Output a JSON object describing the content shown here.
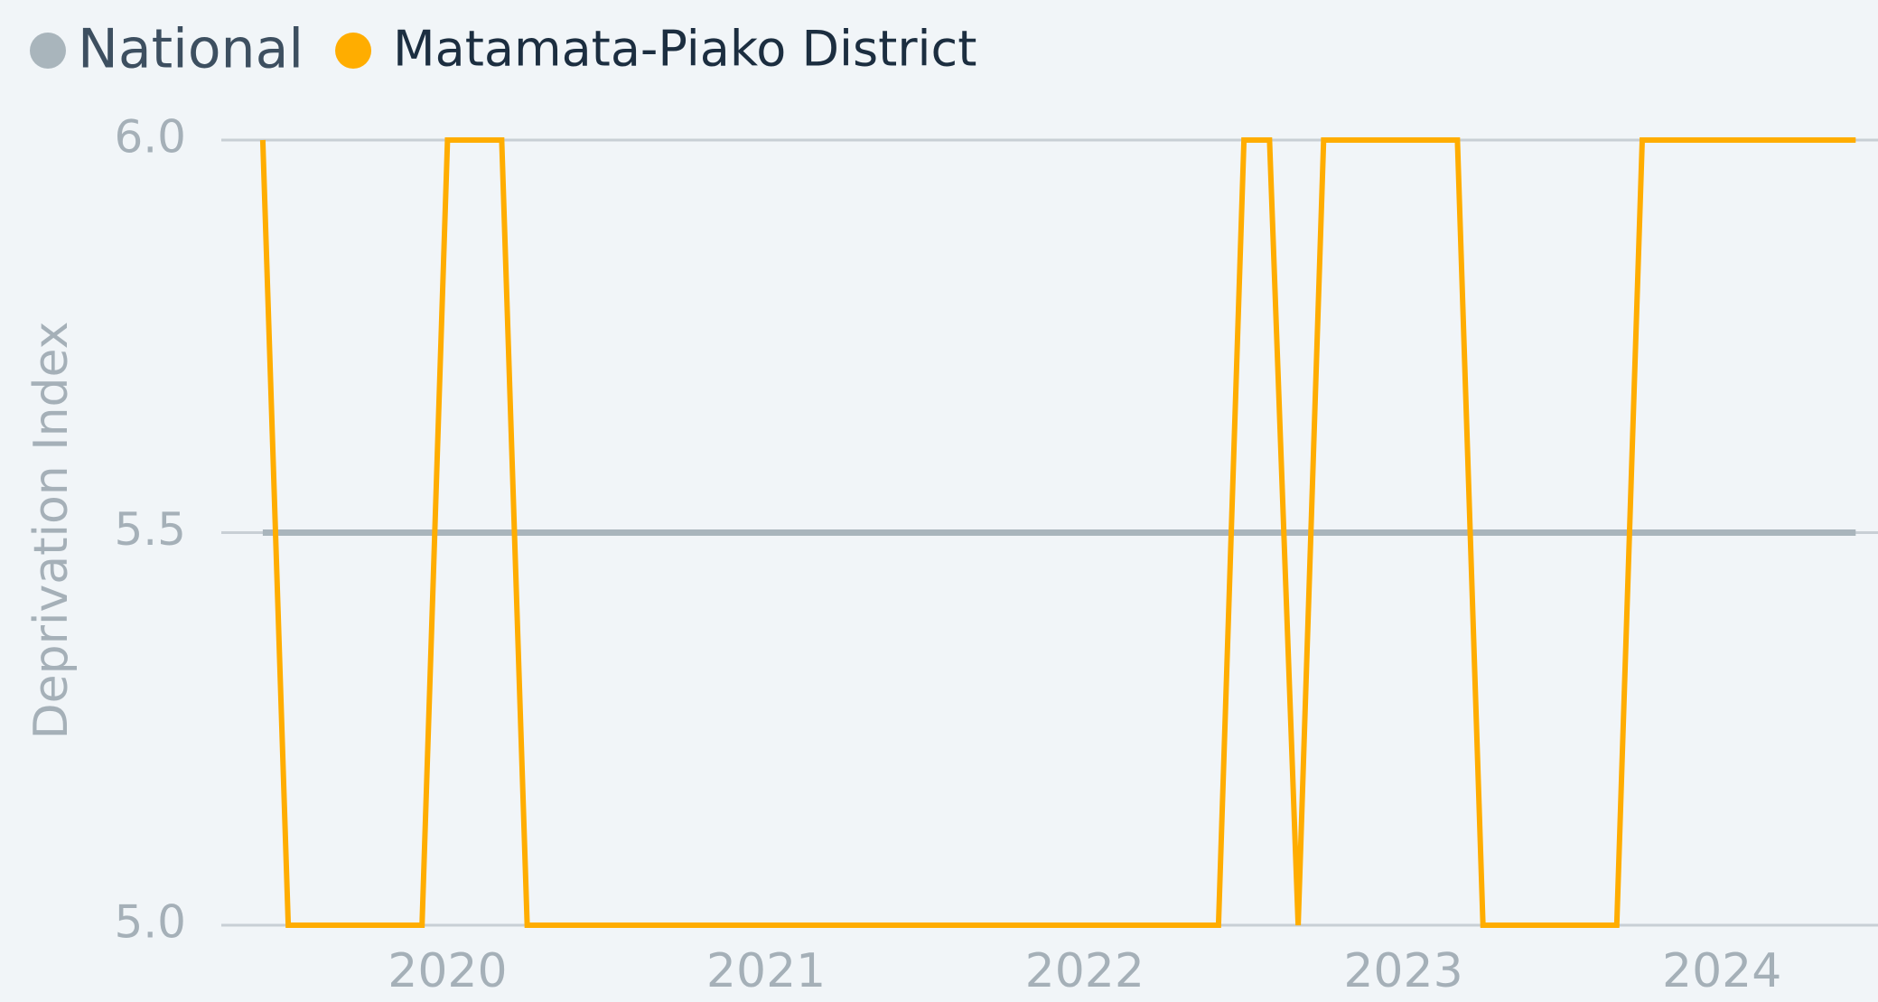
{
  "chart_data": {
    "type": "line",
    "y_label": "Deprivation Index",
    "x": [
      2019.42,
      2019.5,
      2019.58,
      2019.67,
      2019.75,
      2019.83,
      2019.92,
      2020,
      2020.08,
      2020.17,
      2020.25,
      2020.33,
      2020.42,
      2020.5,
      2020.58,
      2020.67,
      2020.75,
      2020.83,
      2020.92,
      2021,
      2021.08,
      2021.17,
      2021.25,
      2021.33,
      2021.42,
      2021.5,
      2021.58,
      2021.67,
      2021.75,
      2021.83,
      2021.92,
      2022,
      2022.08,
      2022.17,
      2022.25,
      2022.33,
      2022.42,
      2022.5,
      2022.58,
      2022.67,
      2022.75,
      2022.83,
      2022.92,
      2023,
      2023.08,
      2023.17,
      2023.25,
      2023.33,
      2023.42,
      2023.5,
      2023.58,
      2023.67,
      2023.75,
      2023.83,
      2023.92,
      2024,
      2024.08,
      2024.17,
      2024.25,
      2024.33,
      2024.42
    ],
    "series": [
      {
        "name": "National",
        "color": "#a9b5bc",
        "values": [
          5.5,
          5.5,
          5.5,
          5.5,
          5.5,
          5.5,
          5.5,
          5.5,
          5.5,
          5.5,
          5.5,
          5.5,
          5.5,
          5.5,
          5.5,
          5.5,
          5.5,
          5.5,
          5.5,
          5.5,
          5.5,
          5.5,
          5.5,
          5.5,
          5.5,
          5.5,
          5.5,
          5.5,
          5.5,
          5.5,
          5.5,
          5.5,
          5.5,
          5.5,
          5.5,
          5.5,
          5.5,
          5.5,
          5.5,
          5.5,
          5.5,
          5.5,
          5.5,
          5.5,
          5.5,
          5.5,
          5.5,
          5.5,
          5.5,
          5.5,
          5.5,
          5.5,
          5.5,
          5.5,
          5.5,
          5.5,
          5.5,
          5.5,
          5.5,
          5.5,
          5.5
        ]
      },
      {
        "name": "Matamata-Piako District",
        "color": "#ffad00",
        "values": [
          6,
          5,
          5,
          5,
          5,
          5,
          5,
          6,
          6,
          6,
          5,
          5,
          5,
          5,
          5,
          5,
          5,
          5,
          5,
          5,
          5,
          5,
          5,
          5,
          5,
          5,
          5,
          5,
          5,
          5,
          5,
          5,
          5,
          5,
          5,
          5,
          5,
          6,
          6,
          5,
          6,
          6,
          6,
          6,
          6,
          6,
          5,
          5,
          5,
          5,
          5,
          5,
          6,
          6,
          6,
          6,
          6,
          6,
          6,
          6,
          6
        ]
      }
    ],
    "xlim": [
      2019.29,
      2024.49
    ],
    "xticks": [
      2020,
      2021,
      2022,
      2023,
      2024
    ],
    "ylim": [
      5,
      6
    ],
    "yticks": [
      {
        "value": 5,
        "label": "5.0"
      },
      5.5,
      {
        "value": 6,
        "label": "6.0"
      }
    ],
    "grid": true
  }
}
